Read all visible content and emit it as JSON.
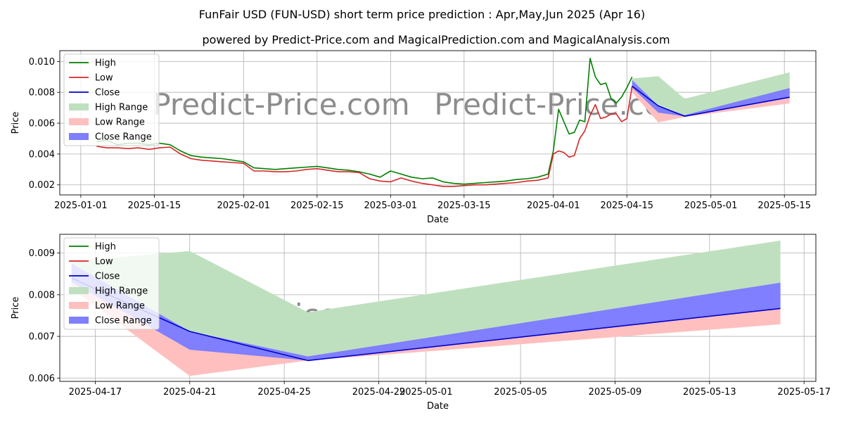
{
  "title": "FunFair USD (FUN-USD) short term price prediction : Apr,May,Jun 2025 (Apr 16)",
  "subtitle": "powered by Predict-Price.com and MagicalPrediction.com and MagicalAnalysis.com",
  "watermark": "Predict-Price.com",
  "colors": {
    "high": "#008000",
    "low": "#d62728",
    "close": "#0000cc",
    "high_range": "#bfe0bf",
    "low_range": "#ffbfbf",
    "close_range": "#7f7fff",
    "grid": "#b0b0b0"
  },
  "chart_data": [
    {
      "type": "line",
      "xlabel": "Date",
      "ylabel": "Price",
      "x_ticks": [
        "2025-01-01",
        "2025-01-15",
        "2025-02-01",
        "2025-02-15",
        "2025-03-01",
        "2025-03-15",
        "2025-04-01",
        "2025-04-15",
        "2025-05-01",
        "2025-05-15"
      ],
      "y_ticks": [
        "0.002",
        "0.004",
        "0.006",
        "0.008",
        "0.010"
      ],
      "xlim": [
        "2024-12-28",
        "2025-05-21"
      ],
      "ylim": [
        0.00135,
        0.0107
      ],
      "grid": true,
      "legend_position": "top-left",
      "legend": [
        "High",
        "Low",
        "Close",
        "High Range",
        "Low Range",
        "Close Range"
      ],
      "series": [
        {
          "name": "High",
          "x": [
            "2025-01-04",
            "2025-01-06",
            "2025-01-08",
            "2025-01-10",
            "2025-01-12",
            "2025-01-14",
            "2025-01-16",
            "2025-01-18",
            "2025-01-20",
            "2025-01-22",
            "2025-01-24",
            "2025-01-26",
            "2025-01-28",
            "2025-01-30",
            "2025-02-01",
            "2025-02-03",
            "2025-02-05",
            "2025-02-07",
            "2025-02-09",
            "2025-02-11",
            "2025-02-13",
            "2025-02-15",
            "2025-02-17",
            "2025-02-19",
            "2025-02-21",
            "2025-02-23",
            "2025-02-25",
            "2025-02-27",
            "2025-03-01",
            "2025-03-03",
            "2025-03-05",
            "2025-03-07",
            "2025-03-09",
            "2025-03-11",
            "2025-03-13",
            "2025-03-15",
            "2025-03-17",
            "2025-03-19",
            "2025-03-21",
            "2025-03-23",
            "2025-03-25",
            "2025-03-27",
            "2025-03-29",
            "2025-03-31",
            "2025-04-01",
            "2025-04-02",
            "2025-04-03",
            "2025-04-04",
            "2025-04-05",
            "2025-04-06",
            "2025-04-07",
            "2025-04-08",
            "2025-04-09",
            "2025-04-10",
            "2025-04-11",
            "2025-04-12",
            "2025-04-13",
            "2025-04-14",
            "2025-04-15",
            "2025-04-16"
          ],
          "values": [
            0.0048,
            0.0049,
            0.0046,
            0.0047,
            0.0047,
            0.0046,
            0.0047,
            0.0046,
            0.0042,
            0.0039,
            0.0038,
            0.00375,
            0.0037,
            0.0036,
            0.0035,
            0.0031,
            0.00305,
            0.003,
            0.00305,
            0.0031,
            0.00315,
            0.0032,
            0.0031,
            0.003,
            0.00295,
            0.00285,
            0.0027,
            0.0025,
            0.0029,
            0.0027,
            0.0025,
            0.0024,
            0.00245,
            0.0022,
            0.0021,
            0.00205,
            0.0021,
            0.00215,
            0.0022,
            0.00225,
            0.00235,
            0.0024,
            0.0025,
            0.0027,
            0.0042,
            0.0069,
            0.0061,
            0.0053,
            0.0054,
            0.0062,
            0.0061,
            0.0102,
            0.009,
            0.0085,
            0.0086,
            0.0076,
            0.0073,
            0.0077,
            0.0083,
            0.009
          ]
        },
        {
          "name": "Low",
          "x": [
            "2025-01-04",
            "2025-01-06",
            "2025-01-08",
            "2025-01-10",
            "2025-01-12",
            "2025-01-14",
            "2025-01-16",
            "2025-01-18",
            "2025-01-20",
            "2025-01-22",
            "2025-01-24",
            "2025-01-26",
            "2025-01-28",
            "2025-01-30",
            "2025-02-01",
            "2025-02-03",
            "2025-02-05",
            "2025-02-07",
            "2025-02-09",
            "2025-02-11",
            "2025-02-13",
            "2025-02-15",
            "2025-02-17",
            "2025-02-19",
            "2025-02-21",
            "2025-02-23",
            "2025-02-25",
            "2025-02-27",
            "2025-03-01",
            "2025-03-03",
            "2025-03-05",
            "2025-03-07",
            "2025-03-09",
            "2025-03-11",
            "2025-03-13",
            "2025-03-15",
            "2025-03-17",
            "2025-03-19",
            "2025-03-21",
            "2025-03-23",
            "2025-03-25",
            "2025-03-27",
            "2025-03-29",
            "2025-03-31",
            "2025-04-01",
            "2025-04-02",
            "2025-04-03",
            "2025-04-04",
            "2025-04-05",
            "2025-04-06",
            "2025-04-07",
            "2025-04-08",
            "2025-04-09",
            "2025-04-10",
            "2025-04-11",
            "2025-04-12",
            "2025-04-13",
            "2025-04-14",
            "2025-04-15",
            "2025-04-16"
          ],
          "values": [
            0.0045,
            0.0044,
            0.0044,
            0.00435,
            0.0044,
            0.0043,
            0.0044,
            0.00445,
            0.004,
            0.0037,
            0.0036,
            0.00355,
            0.0035,
            0.00345,
            0.0034,
            0.0029,
            0.0029,
            0.00285,
            0.00285,
            0.0029,
            0.003,
            0.00305,
            0.00295,
            0.00285,
            0.00285,
            0.0028,
            0.0024,
            0.00225,
            0.0022,
            0.00245,
            0.00225,
            0.0021,
            0.002,
            0.0019,
            0.0019,
            0.00195,
            0.002,
            0.002,
            0.00205,
            0.0021,
            0.00215,
            0.00225,
            0.0023,
            0.00245,
            0.004,
            0.0042,
            0.0041,
            0.0038,
            0.0039,
            0.005,
            0.0055,
            0.0065,
            0.0072,
            0.0063,
            0.0064,
            0.0066,
            0.0066,
            0.0061,
            0.0063,
            0.0084
          ]
        },
        {
          "name": "Close",
          "x": [
            "2025-04-16",
            "2025-04-21",
            "2025-04-26",
            "2025-05-16"
          ],
          "values": [
            0.0084,
            0.00712,
            0.00645,
            0.00768
          ]
        }
      ],
      "ranges": [
        {
          "name": "High Range",
          "x": [
            "2025-04-16",
            "2025-04-21",
            "2025-04-26",
            "2025-05-16"
          ],
          "upper": [
            0.0089,
            0.00905,
            0.00758,
            0.0093
          ],
          "lower": [
            0.0084,
            0.00712,
            0.00645,
            0.00768
          ]
        },
        {
          "name": "Low Range",
          "x": [
            "2025-04-16",
            "2025-04-21",
            "2025-04-26",
            "2025-05-16"
          ],
          "upper": [
            0.0084,
            0.00712,
            0.00645,
            0.00768
          ],
          "lower": [
            0.008,
            0.00605,
            0.0064,
            0.00728
          ]
        },
        {
          "name": "Close Range",
          "x": [
            "2025-04-16",
            "2025-04-21",
            "2025-04-26",
            "2025-05-16"
          ],
          "upper": [
            0.0088,
            0.00712,
            0.00652,
            0.00828
          ],
          "lower": [
            0.0083,
            0.00668,
            0.00645,
            0.00768
          ]
        }
      ]
    },
    {
      "type": "line",
      "xlabel": "Date",
      "ylabel": "Price",
      "x_ticks": [
        "2025-04-17",
        "2025-04-21",
        "2025-04-25",
        "2025-04-29",
        "2025-05-01",
        "2025-05-05",
        "2025-05-09",
        "2025-05-13",
        "2025-05-17"
      ],
      "y_ticks": [
        "0.006",
        "0.007",
        "0.008",
        "0.009"
      ],
      "xlim": [
        "2025-04-15 12:00",
        "2025-05-17 12:00"
      ],
      "ylim": [
        0.00592,
        0.00945
      ],
      "grid": true,
      "legend_position": "top-left",
      "legend": [
        "High",
        "Low",
        "Close",
        "High Range",
        "Low Range",
        "Close Range"
      ],
      "series": [
        {
          "name": "Close",
          "x": [
            "2025-04-16",
            "2025-04-21",
            "2025-04-26",
            "2025-05-16"
          ],
          "values": [
            0.0084,
            0.00712,
            0.00642,
            0.00767
          ]
        }
      ],
      "ranges": [
        {
          "name": "High Range",
          "x": [
            "2025-04-16",
            "2025-04-21",
            "2025-04-26",
            "2025-05-16"
          ],
          "upper": [
            0.0088,
            0.00905,
            0.00758,
            0.0093
          ],
          "lower": [
            0.0084,
            0.00712,
            0.00642,
            0.00767
          ]
        },
        {
          "name": "Low Range",
          "x": [
            "2025-04-16",
            "2025-04-21",
            "2025-04-26",
            "2025-05-16"
          ],
          "upper": [
            0.0084,
            0.00712,
            0.00642,
            0.00767
          ],
          "lower": [
            0.00815,
            0.00605,
            0.00642,
            0.00729
          ]
        },
        {
          "name": "Close Range",
          "x": [
            "2025-04-16",
            "2025-04-21",
            "2025-04-26",
            "2025-05-16"
          ],
          "upper": [
            0.00875,
            0.00712,
            0.00652,
            0.00829
          ],
          "lower": [
            0.0083,
            0.00668,
            0.00642,
            0.00767
          ]
        }
      ]
    }
  ]
}
